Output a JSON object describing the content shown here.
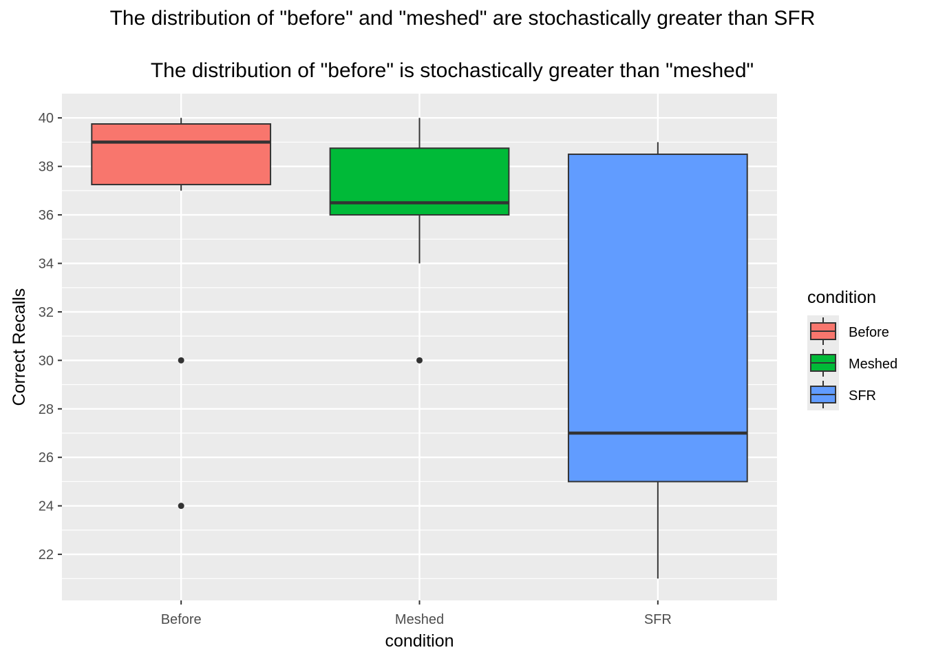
{
  "chart_data": {
    "type": "boxplot",
    "title": "The distribution of \"before\" and \"meshed\" are stochastically greater than SFR",
    "subtitle": "The distribution of \"before\" is stochastically greater than \"meshed\"",
    "xlabel": "condition",
    "ylabel": "Correct Recalls",
    "ylim": [
      20.1,
      41.0
    ],
    "yticks": [
      22,
      24,
      26,
      28,
      30,
      32,
      34,
      36,
      38,
      40
    ],
    "categories": [
      "Before",
      "Meshed",
      "SFR"
    ],
    "colors": [
      "#F8766D",
      "#00BA38",
      "#619CFF"
    ],
    "boxes": [
      {
        "category": "Before",
        "whisker_low": 37.0,
        "q1": 37.25,
        "median": 39.0,
        "q3": 39.75,
        "whisker_high": 40.0,
        "outliers": [
          30,
          24
        ]
      },
      {
        "category": "Meshed",
        "whisker_low": 34.0,
        "q1": 36.0,
        "median": 36.5,
        "q3": 38.75,
        "whisker_high": 40.0,
        "outliers": [
          30
        ]
      },
      {
        "category": "SFR",
        "whisker_low": 21.0,
        "q1": 25.0,
        "median": 27.0,
        "q3": 38.5,
        "whisker_high": 39.0,
        "outliers": []
      }
    ],
    "legend": {
      "title": "condition",
      "items": [
        "Before",
        "Meshed",
        "SFR"
      ],
      "position": "right"
    },
    "grid": true
  }
}
